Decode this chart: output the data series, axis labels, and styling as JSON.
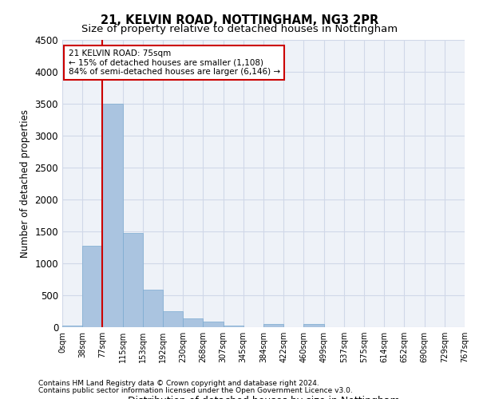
{
  "title1": "21, KELVIN ROAD, NOTTINGHAM, NG3 2PR",
  "title2": "Size of property relative to detached houses in Nottingham",
  "xlabel": "Distribution of detached houses by size in Nottingham",
  "ylabel": "Number of detached properties",
  "bin_labels": [
    "0sqm",
    "38sqm",
    "77sqm",
    "115sqm",
    "153sqm",
    "192sqm",
    "230sqm",
    "268sqm",
    "307sqm",
    "345sqm",
    "384sqm",
    "422sqm",
    "460sqm",
    "499sqm",
    "537sqm",
    "575sqm",
    "614sqm",
    "652sqm",
    "690sqm",
    "729sqm",
    "767sqm"
  ],
  "bar_values": [
    30,
    1270,
    3500,
    1480,
    590,
    250,
    140,
    90,
    30,
    5,
    50,
    0,
    50,
    0,
    0,
    0,
    0,
    0,
    0,
    0
  ],
  "bar_color": "#aac4e0",
  "bar_edge_color": "#7aaad0",
  "grid_color": "#d0d8e8",
  "background_color": "#eef2f8",
  "vline_x": 2,
  "vline_color": "#cc0000",
  "annotation_text": "21 KELVIN ROAD: 75sqm\n← 15% of detached houses are smaller (1,108)\n84% of semi-detached houses are larger (6,146) →",
  "annotation_box_color": "#ffffff",
  "annotation_border_color": "#cc0000",
  "ylim": [
    0,
    4500
  ],
  "yticks": [
    0,
    500,
    1000,
    1500,
    2000,
    2500,
    3000,
    3500,
    4000,
    4500
  ],
  "footnote1": "Contains HM Land Registry data © Crown copyright and database right 2024.",
  "footnote2": "Contains public sector information licensed under the Open Government Licence v3.0."
}
